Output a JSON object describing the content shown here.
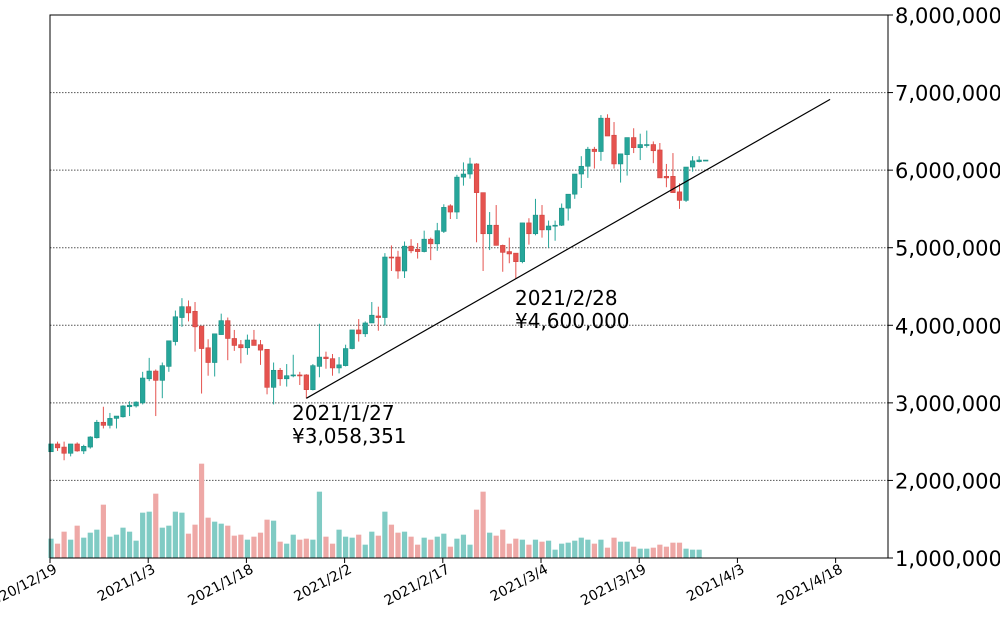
{
  "chart_data": {
    "type": "candlestick",
    "title": "",
    "xlabel": "",
    "ylabel": "",
    "xlim": [
      "2020-12-19",
      "2021-04-26"
    ],
    "ylim": [
      1000000,
      8000000
    ],
    "y_axis_side": "right",
    "grid": "horizontal dotted",
    "legend": "none",
    "volume_units": "relative (no scale printed)",
    "colors": {
      "up": "#26a69a",
      "down": "#e5534f",
      "up_volume": "#80cbc4",
      "down_volume": "#eea8a6",
      "trendline": "#000000"
    },
    "y_ticks": [
      1000000,
      2000000,
      3000000,
      4000000,
      5000000,
      6000000,
      7000000,
      8000000
    ],
    "y_tick_labels": [
      "1,000,000",
      "2,000,000",
      "3,000,000",
      "4,000,000",
      "5,000,000",
      "6,000,000",
      "7,000,000",
      "8,000,000"
    ],
    "x_ticks": [
      "2020-12-19",
      "2021-01-03",
      "2021-01-18",
      "2021-02-02",
      "2021-02-17",
      "2021-03-04",
      "2021-03-19",
      "2021-04-03",
      "2021-04-18"
    ],
    "x_tick_labels": [
      "2020/12/19",
      "2021/1/3",
      "2021/1/18",
      "2021/2/2",
      "2021/2/17",
      "2021/3/4",
      "2021/3/19",
      "2021/4/3",
      "2021/4/18"
    ],
    "candle_fields": [
      "date",
      "open",
      "high",
      "low",
      "close",
      "volume"
    ],
    "candles": [
      [
        "2020-12-19",
        2370000,
        2470000,
        2370000,
        2470000,
        58
      ],
      [
        "2020-12-20",
        2470000,
        2500000,
        2380000,
        2420000,
        43
      ],
      [
        "2020-12-21",
        2430000,
        2500000,
        2260000,
        2350000,
        79
      ],
      [
        "2020-12-22",
        2350000,
        2470000,
        2310000,
        2470000,
        55
      ],
      [
        "2020-12-23",
        2470000,
        2490000,
        2370000,
        2380000,
        97
      ],
      [
        "2020-12-24",
        2380000,
        2460000,
        2340000,
        2440000,
        61
      ],
      [
        "2020-12-25",
        2430000,
        2570000,
        2410000,
        2560000,
        76
      ],
      [
        "2020-12-26",
        2550000,
        2780000,
        2540000,
        2750000,
        85
      ],
      [
        "2020-12-27",
        2750000,
        2950000,
        2670000,
        2710000,
        160
      ],
      [
        "2020-12-28",
        2710000,
        2870000,
        2670000,
        2800000,
        64
      ],
      [
        "2020-12-29",
        2800000,
        2830000,
        2670000,
        2830000,
        70
      ],
      [
        "2020-12-30",
        2820000,
        2970000,
        2810000,
        2960000,
        91
      ],
      [
        "2020-12-31",
        2950000,
        3020000,
        2830000,
        2970000,
        79
      ],
      [
        "2021-01-01",
        2960000,
        3020000,
        2940000,
        3010000,
        52
      ],
      [
        "2021-01-02",
        3000000,
        3400000,
        2980000,
        3320000,
        136
      ],
      [
        "2021-01-03",
        3310000,
        3580000,
        3280000,
        3410000,
        139
      ],
      [
        "2021-01-04",
        3410000,
        3430000,
        2830000,
        3290000,
        193
      ],
      [
        "2021-01-05",
        3290000,
        3520000,
        3060000,
        3480000,
        91
      ],
      [
        "2021-01-06",
        3470000,
        3800000,
        3400000,
        3800000,
        97
      ],
      [
        "2021-01-07",
        3790000,
        4190000,
        3740000,
        4110000,
        139
      ],
      [
        "2021-01-08",
        4100000,
        4350000,
        3980000,
        4240000,
        136
      ],
      [
        "2021-01-09",
        4240000,
        4320000,
        4050000,
        4160000,
        73
      ],
      [
        "2021-01-10",
        4180000,
        4300000,
        3660000,
        3980000,
        100
      ],
      [
        "2021-01-11",
        3990000,
        3990000,
        3120000,
        3700000,
        283
      ],
      [
        "2021-01-12",
        3710000,
        3820000,
        3350000,
        3520000,
        121
      ],
      [
        "2021-01-13",
        3520000,
        3890000,
        3340000,
        3890000,
        109
      ],
      [
        "2021-01-14",
        3880000,
        4150000,
        3880000,
        4060000,
        103
      ],
      [
        "2021-01-15",
        4060000,
        4100000,
        3550000,
        3830000,
        97
      ],
      [
        "2021-01-16",
        3830000,
        3940000,
        3670000,
        3740000,
        67
      ],
      [
        "2021-01-17",
        3750000,
        3810000,
        3510000,
        3710000,
        70
      ],
      [
        "2021-01-18",
        3710000,
        3880000,
        3620000,
        3810000,
        55
      ],
      [
        "2021-01-19",
        3810000,
        3940000,
        3740000,
        3740000,
        64
      ],
      [
        "2021-01-20",
        3750000,
        3810000,
        3490000,
        3680000,
        76
      ],
      [
        "2021-01-21",
        3690000,
        3690000,
        3110000,
        3200000,
        115
      ],
      [
        "2021-01-22",
        3200000,
        3520000,
        2980000,
        3420000,
        112
      ],
      [
        "2021-01-23",
        3420000,
        3450000,
        3220000,
        3310000,
        49
      ],
      [
        "2021-01-24",
        3310000,
        3500000,
        3210000,
        3350000,
        43
      ],
      [
        "2021-01-25",
        3350000,
        3620000,
        3330000,
        3360000,
        70
      ],
      [
        "2021-01-26",
        3360000,
        3400000,
        3230000,
        3350000,
        55
      ],
      [
        "2021-01-27",
        3360000,
        3370000,
        3058351,
        3170000,
        58
      ],
      [
        "2021-01-28",
        3170000,
        3500000,
        3160000,
        3480000,
        55
      ],
      [
        "2021-01-29",
        3470000,
        4020000,
        3330000,
        3590000,
        199
      ],
      [
        "2021-01-30",
        3590000,
        3660000,
        3440000,
        3570000,
        64
      ],
      [
        "2021-01-31",
        3570000,
        3630000,
        3350000,
        3450000,
        43
      ],
      [
        "2021-02-01",
        3450000,
        3590000,
        3380000,
        3490000,
        85
      ],
      [
        "2021-02-02",
        3480000,
        3750000,
        3470000,
        3700000,
        64
      ],
      [
        "2021-02-03",
        3700000,
        3940000,
        3690000,
        3940000,
        61
      ],
      [
        "2021-02-04",
        3940000,
        4080000,
        3790000,
        3890000,
        70
      ],
      [
        "2021-02-05",
        3890000,
        4050000,
        3850000,
        4030000,
        40
      ],
      [
        "2021-02-06",
        4030000,
        4300000,
        4030000,
        4130000,
        79
      ],
      [
        "2021-02-07",
        4120000,
        4240000,
        3930000,
        4100000,
        67
      ],
      [
        "2021-02-08",
        4100000,
        4930000,
        4000000,
        4880000,
        139
      ],
      [
        "2021-02-09",
        4880000,
        5030000,
        4700000,
        4870000,
        100
      ],
      [
        "2021-02-10",
        4880000,
        4960000,
        4600000,
        4700000,
        76
      ],
      [
        "2021-02-11",
        4700000,
        5080000,
        4610000,
        5020000,
        79
      ],
      [
        "2021-02-12",
        5020000,
        5110000,
        4930000,
        4960000,
        64
      ],
      [
        "2021-02-13",
        4980000,
        5060000,
        4860000,
        4950000,
        40
      ],
      [
        "2021-02-14",
        4950000,
        5220000,
        4940000,
        5110000,
        61
      ],
      [
        "2021-02-15",
        5110000,
        5130000,
        4840000,
        5050000,
        55
      ],
      [
        "2021-02-16",
        5050000,
        5320000,
        4960000,
        5220000,
        64
      ],
      [
        "2021-02-17",
        5210000,
        5560000,
        5190000,
        5520000,
        73
      ],
      [
        "2021-02-18",
        5540000,
        5560000,
        5370000,
        5460000,
        34
      ],
      [
        "2021-02-19",
        5460000,
        5940000,
        5370000,
        5910000,
        58
      ],
      [
        "2021-02-20",
        5910000,
        6100000,
        5800000,
        5950000,
        70
      ],
      [
        "2021-02-21",
        5950000,
        6160000,
        5890000,
        6080000,
        40
      ],
      [
        "2021-02-22",
        6080000,
        6090000,
        5070000,
        5710000,
        145
      ],
      [
        "2021-02-23",
        5710000,
        5710000,
        4700000,
        5180000,
        199
      ],
      [
        "2021-02-24",
        5180000,
        5460000,
        4970000,
        5290000,
        76
      ],
      [
        "2021-02-25",
        5290000,
        5550000,
        5030000,
        5030000,
        67
      ],
      [
        "2021-02-26",
        5030000,
        5040000,
        4690000,
        4940000,
        85
      ],
      [
        "2021-02-27",
        4950000,
        5130000,
        4800000,
        4920000,
        43
      ],
      [
        "2021-02-28",
        4930000,
        4930000,
        4600000,
        4820000,
        58
      ],
      [
        "2021-03-01",
        4820000,
        5320000,
        4800000,
        5320000,
        55
      ],
      [
        "2021-03-02",
        5320000,
        5380000,
        5040000,
        5180000,
        40
      ],
      [
        "2021-03-03",
        5180000,
        5630000,
        5160000,
        5420000,
        55
      ],
      [
        "2021-03-04",
        5420000,
        5550000,
        5130000,
        5230000,
        49
      ],
      [
        "2021-03-05",
        5230000,
        5350000,
        5000000,
        5280000,
        52
      ],
      [
        "2021-03-06",
        5280000,
        5350000,
        5090000,
        5290000,
        25
      ],
      [
        "2021-03-07",
        5290000,
        5570000,
        5280000,
        5510000,
        43
      ],
      [
        "2021-03-08",
        5510000,
        5690000,
        5350000,
        5690000,
        46
      ],
      [
        "2021-03-09",
        5690000,
        5950000,
        5630000,
        5950000,
        52
      ],
      [
        "2021-03-10",
        5950000,
        6180000,
        5770000,
        6050000,
        61
      ],
      [
        "2021-03-11",
        6050000,
        6300000,
        5900000,
        6270000,
        55
      ],
      [
        "2021-03-12",
        6270000,
        6300000,
        6020000,
        6240000,
        43
      ],
      [
        "2021-03-13",
        6240000,
        6710000,
        6120000,
        6670000,
        55
      ],
      [
        "2021-03-14",
        6670000,
        6720000,
        6440000,
        6440000,
        31
      ],
      [
        "2021-03-15",
        6450000,
        6620000,
        6020000,
        6080000,
        61
      ],
      [
        "2021-03-16",
        6080000,
        6210000,
        5840000,
        6210000,
        49
      ],
      [
        "2021-03-17",
        6200000,
        6420000,
        5930000,
        6420000,
        49
      ],
      [
        "2021-03-18",
        6420000,
        6540000,
        6220000,
        6290000,
        34
      ],
      [
        "2021-03-19",
        6290000,
        6470000,
        6130000,
        6330000,
        28
      ],
      [
        "2021-03-20",
        6320000,
        6510000,
        6290000,
        6330000,
        28
      ],
      [
        "2021-03-21",
        6330000,
        6370000,
        6090000,
        6250000,
        31
      ],
      [
        "2021-03-22",
        6260000,
        6350000,
        5900000,
        5900000,
        40
      ],
      [
        "2021-03-23",
        5920000,
        6080000,
        5780000,
        5900000,
        34
      ],
      [
        "2021-03-24",
        5920000,
        6220000,
        5710000,
        5710000,
        46
      ],
      [
        "2021-03-25",
        5720000,
        5830000,
        5500000,
        5610000,
        46
      ],
      [
        "2021-03-26",
        5610000,
        6040000,
        5590000,
        6040000,
        28
      ],
      [
        "2021-03-27",
        6040000,
        6180000,
        5980000,
        6120000,
        25
      ],
      [
        "2021-03-28",
        6110000,
        6180000,
        6100000,
        6130000,
        25
      ],
      [
        "2021-03-29",
        6120000,
        6130000,
        6120000,
        6130000,
        0
      ]
    ],
    "trendline": {
      "from": [
        "2021-01-27",
        3058351
      ],
      "through": [
        "2021-02-28",
        4600000
      ],
      "to_date": "2021-04-17"
    },
    "annotations": [
      {
        "date_label": "2021/1/27",
        "price_label": "¥3,058,351",
        "date": "2021-01-27",
        "value": 3058351
      },
      {
        "date_label": "2021/2/28",
        "price_label": "¥4,600,000",
        "date": "2021-02-28",
        "value": 4600000
      }
    ]
  }
}
